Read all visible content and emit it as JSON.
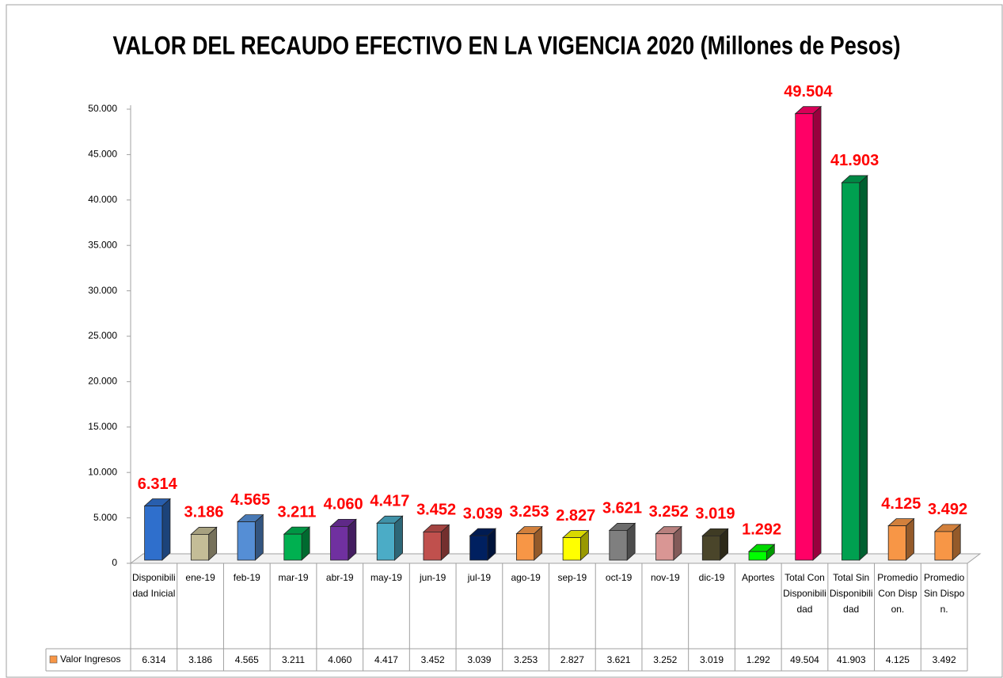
{
  "chart_data": {
    "type": "bar3d",
    "title": "VALOR DEL RECAUDO EFECTIVO EN LA VIGENCIA 2020 (Millones de Pesos)",
    "categories": [
      "Disponibilidad Inicial",
      "ene-19",
      "feb-19",
      "mar-19",
      "abr-19",
      "may-19",
      "jun-19",
      "jul-19",
      "ago-19",
      "sep-19",
      "oct-19",
      "nov-19",
      "dic-19",
      "Aportes",
      "Total Con Disponibilidad",
      "Total Sin Disponibilidad",
      "Promedio Con Dispon.",
      "Promedio Sin Dispon."
    ],
    "series": [
      {
        "name": "Valor Ingresos",
        "color": "#f79646",
        "values": [
          6314,
          3186,
          4565,
          3211,
          4060,
          4417,
          3452,
          3039,
          3253,
          2827,
          3621,
          3252,
          3019,
          1292,
          49504,
          41903,
          4125,
          3492
        ],
        "value_labels": [
          "6.314",
          "3.186",
          "4.565",
          "3.211",
          "4.060",
          "4.417",
          "3.452",
          "3.039",
          "3.253",
          "2.827",
          "3.621",
          "3.252",
          "3.019",
          "1.292",
          "49.504",
          "41.903",
          "4.125",
          "3.492"
        ],
        "colors": [
          "#2f6fcc",
          "#c4bd97",
          "#558ed5",
          "#00b050",
          "#7030a0",
          "#4bacc6",
          "#c0504d",
          "#002060",
          "#f79646",
          "#ffff00",
          "#7f7f7f",
          "#d99694",
          "#4a452a",
          "#00ff00",
          "#ff0066",
          "#00a050",
          "#f79646",
          "#f79646"
        ]
      }
    ],
    "ylim": [
      0,
      50000
    ],
    "yticks": [
      0,
      {
        "value": 5000,
        "label": "5.000"
      },
      {
        "value": 10000,
        "label": "10.000"
      },
      {
        "value": 15000,
        "label": "15.000"
      },
      {
        "value": 20000,
        "label": "20.000"
      },
      {
        "value": 25000,
        "label": "25.000"
      },
      {
        "value": 30000,
        "label": "30.000"
      },
      {
        "value": 35000,
        "label": "35.000"
      },
      {
        "value": 40000,
        "label": "40.000"
      },
      {
        "value": 45000,
        "label": "45.000"
      },
      {
        "value": 50000,
        "label": "50.000"
      }
    ],
    "value_label_color": "#ff0000",
    "data_table": true
  }
}
